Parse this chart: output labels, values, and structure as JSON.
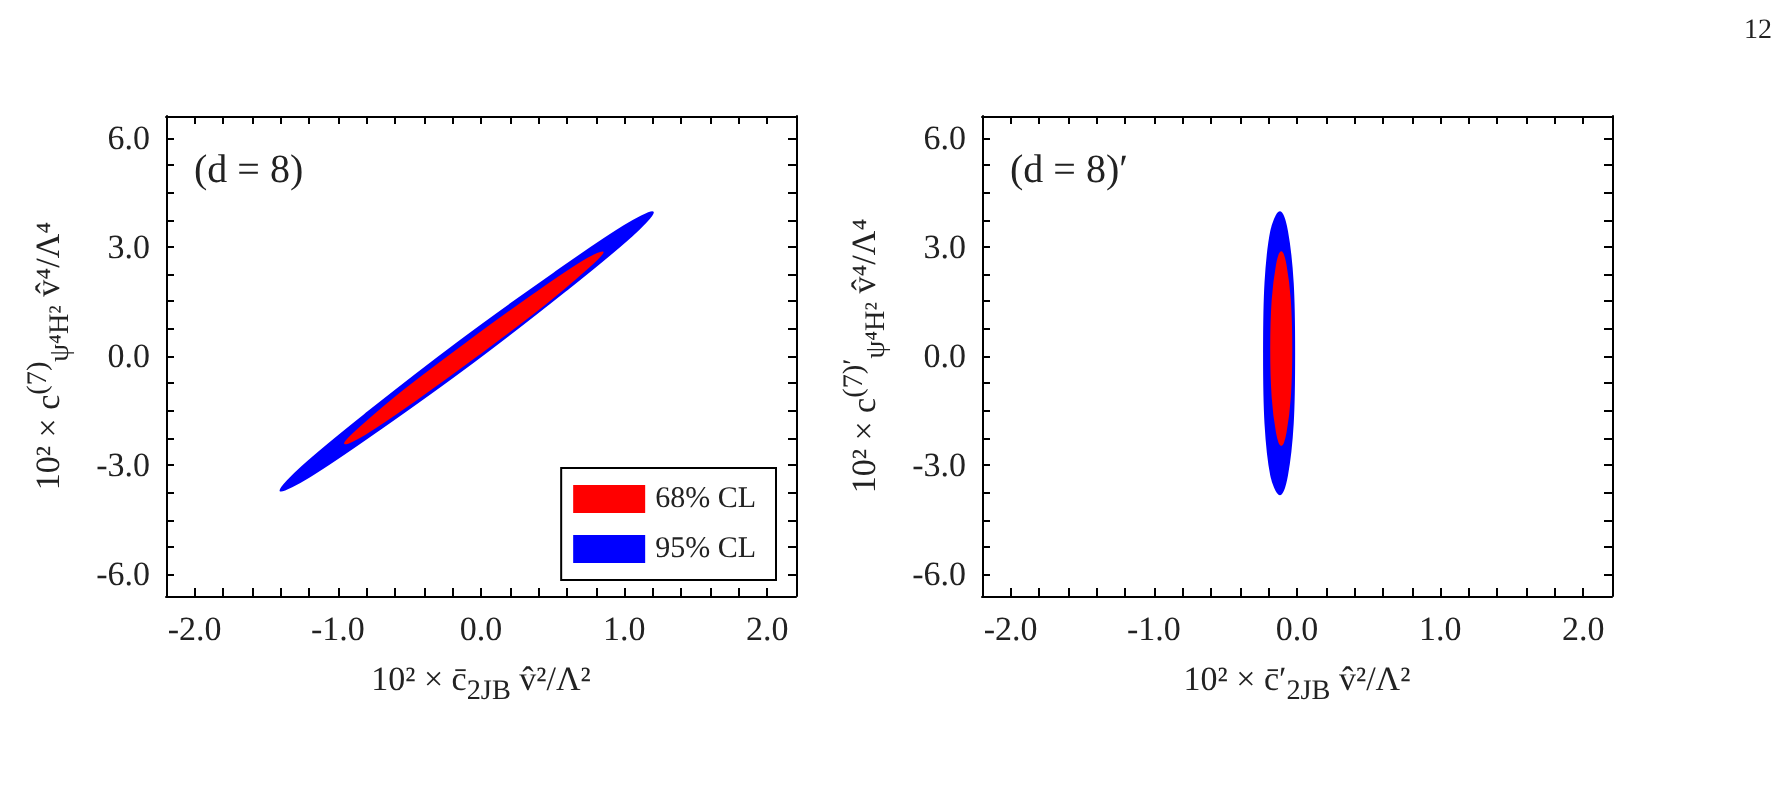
{
  "chart_data": [
    {
      "type": "area",
      "xlabel": "10² × c̄$_{2JB}$ v̂²/Λ²",
      "ylabel": "10² × c$^{(7)}$$_{ψ⁴H²}$ v̂⁴/Λ⁴",
      "annotations": [
        "(d = 8)"
      ],
      "legend": "bottom right",
      "xlim": [
        -2.2,
        2.2
      ],
      "ylim": [
        -6.6,
        6.6
      ],
      "xticks": [
        {
          "value": -2,
          "label": "-2.0"
        },
        {
          "value": -1.8,
          "label": null
        },
        {
          "value": -1.6,
          "label": null
        },
        {
          "value": -1.4,
          "label": null
        },
        {
          "value": -1.2,
          "label": null
        },
        {
          "value": -1,
          "label": "-1.0"
        },
        {
          "value": -0.8,
          "label": null
        },
        {
          "value": -0.6,
          "label": null
        },
        {
          "value": -0.4,
          "label": null
        },
        {
          "value": -0.2,
          "label": null
        },
        {
          "value": 0,
          "label": "0.0"
        },
        {
          "value": 0.2,
          "label": null
        },
        {
          "value": 0.4,
          "label": null
        },
        {
          "value": 0.6,
          "label": null
        },
        {
          "value": 0.8,
          "label": null
        },
        {
          "value": 1,
          "label": "1.0"
        },
        {
          "value": 1.2,
          "label": null
        },
        {
          "value": 1.4,
          "label": null
        },
        {
          "value": 1.6,
          "label": null
        },
        {
          "value": 1.8,
          "label": null
        },
        {
          "value": 2,
          "label": "2.0"
        }
      ],
      "yticks": [
        {
          "value": -6,
          "label": "-6.0"
        },
        {
          "value": -5.25,
          "label": null
        },
        {
          "value": -4.5,
          "label": null
        },
        {
          "value": -3.75,
          "label": null
        },
        {
          "value": -3,
          "label": "-3.0"
        },
        {
          "value": -2.25,
          "label": null
        },
        {
          "value": -1.5,
          "label": null
        },
        {
          "value": -0.75,
          "label": null
        },
        {
          "value": 0,
          "label": "0.0"
        },
        {
          "value": 0.75,
          "label": null
        },
        {
          "value": 1.5,
          "label": null
        },
        {
          "value": 2.25,
          "label": null
        },
        {
          "value": 3,
          "label": "3.0"
        },
        {
          "value": 3.75,
          "label": null
        },
        {
          "value": 4.5,
          "label": null
        },
        {
          "value": 5.25,
          "label": null
        },
        {
          "value": 6,
          "label": "6.0"
        }
      ],
      "series": [
        {
          "name": "68% CL",
          "color": "#ff0000",
          "x": [
            0.85,
            0.74,
            0.43,
            -0.02,
            -0.47,
            -0.81,
            -0.95,
            -0.84,
            -0.53,
            -0.08,
            0.37,
            0.71
          ],
          "values": [
            2.85,
            2.41,
            1.38,
            0.04,
            -1.24,
            -2.14,
            -2.4,
            -1.96,
            -0.93,
            0.41,
            1.69,
            2.59
          ]
        },
        {
          "name": "95% CL",
          "color": "#0000ff",
          "x": [
            1.2,
            1.05,
            0.59,
            -0.05,
            -0.71,
            -1.2,
            -1.4,
            -1.25,
            -0.79,
            -0.15,
            0.51,
            1.0
          ],
          "values": [
            3.95,
            3.3,
            1.8,
            -0.15,
            -2.02,
            -3.32,
            -3.7,
            -3.05,
            -1.55,
            0.4,
            2.27,
            3.57
          ]
        }
      ]
    },
    {
      "type": "area",
      "xlabel": "10² × c̄′$_{2JB}$ v̂²/Λ²",
      "ylabel": "10² × c$^{(7)′}$$_{ψ⁴H²}$ v̂⁴/Λ⁴",
      "annotations": [
        "(d = 8)′",
        "12"
      ],
      "xlim": [
        -2.2,
        2.2
      ],
      "ylim": [
        -6.6,
        6.6
      ],
      "xticks": [
        {
          "value": -2,
          "label": "-2.0"
        },
        {
          "value": -1.8,
          "label": null
        },
        {
          "value": -1.6,
          "label": null
        },
        {
          "value": -1.4,
          "label": null
        },
        {
          "value": -1.2,
          "label": null
        },
        {
          "value": -1,
          "label": "-1.0"
        },
        {
          "value": -0.8,
          "label": null
        },
        {
          "value": -0.6,
          "label": null
        },
        {
          "value": -0.4,
          "label": null
        },
        {
          "value": -0.2,
          "label": null
        },
        {
          "value": 0,
          "label": "0.0"
        },
        {
          "value": 0.2,
          "label": null
        },
        {
          "value": 0.4,
          "label": null
        },
        {
          "value": 0.6,
          "label": null
        },
        {
          "value": 0.8,
          "label": null
        },
        {
          "value": 1,
          "label": "1.0"
        },
        {
          "value": 1.2,
          "label": null
        },
        {
          "value": 1.4,
          "label": null
        },
        {
          "value": 1.6,
          "label": null
        },
        {
          "value": 1.8,
          "label": null
        },
        {
          "value": 2,
          "label": "2.0"
        }
      ],
      "yticks": [
        {
          "value": -6,
          "label": "-6.0"
        },
        {
          "value": -5.25,
          "label": null
        },
        {
          "value": -4.5,
          "label": null
        },
        {
          "value": -3.75,
          "label": null
        },
        {
          "value": -3,
          "label": "-3.0"
        },
        {
          "value": -2.25,
          "label": null
        },
        {
          "value": -1.5,
          "label": null
        },
        {
          "value": -0.75,
          "label": null
        },
        {
          "value": 0,
          "label": "0.0"
        },
        {
          "value": 0.75,
          "label": null
        },
        {
          "value": 1.5,
          "label": null
        },
        {
          "value": 2.25,
          "label": null
        },
        {
          "value": 3,
          "label": "3.0"
        },
        {
          "value": 3.75,
          "label": null
        },
        {
          "value": 4.5,
          "label": null
        },
        {
          "value": 5.25,
          "label": null
        },
        {
          "value": 6,
          "label": "6.0"
        }
      ],
      "series": [
        {
          "color": "#ff0000",
          "x": [
            -0.11,
            -0.08,
            -0.05,
            -0.04,
            -0.05,
            -0.08,
            -0.11,
            -0.14,
            -0.17,
            -0.18,
            -0.17,
            -0.14
          ],
          "values": [
            2.85,
            2.5,
            1.53,
            0.2,
            -1.13,
            -2.1,
            -2.45,
            -2.1,
            -1.13,
            0.2,
            1.53,
            2.5
          ]
        },
        {
          "color": "#0000ff",
          "x": [
            -0.12,
            -0.07,
            -0.03,
            -0.02,
            -0.03,
            -0.07,
            -0.12,
            -0.18,
            -0.22,
            -0.23,
            -0.22,
            -0.18
          ],
          "values": [
            3.95,
            3.43,
            2.01,
            0.08,
            -1.86,
            -3.28,
            -3.8,
            -3.28,
            -1.86,
            0.08,
            2.01,
            3.43
          ]
        }
      ]
    }
  ]
}
